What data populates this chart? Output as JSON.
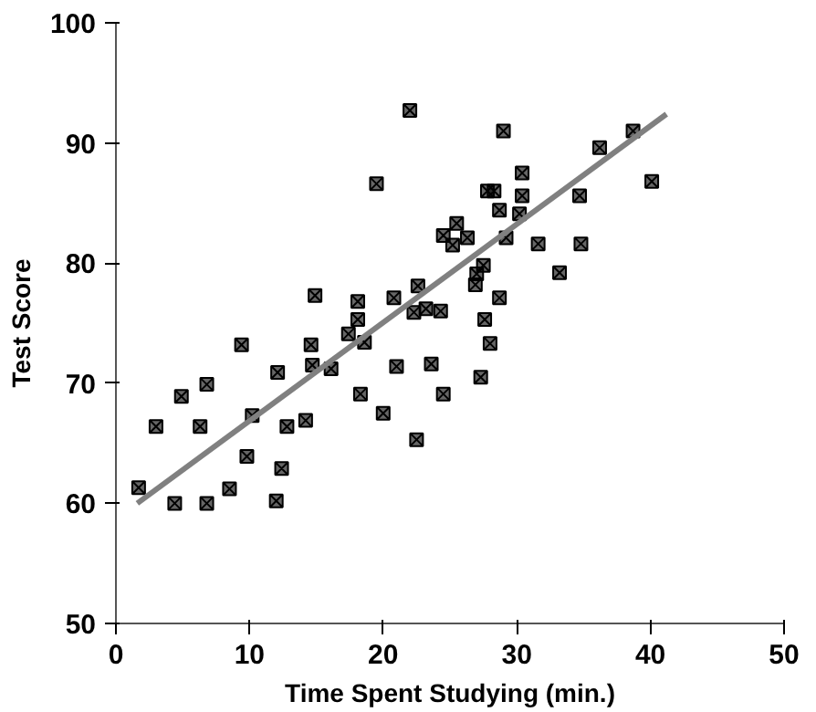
{
  "chart_data": {
    "type": "scatter",
    "xlabel": "Time Spent Studying (min.)",
    "ylabel": "Test Score",
    "xlim": [
      0,
      50
    ],
    "ylim": [
      50,
      100
    ],
    "xticks": [
      0,
      10,
      20,
      30,
      40,
      50
    ],
    "yticks": [
      50,
      60,
      70,
      80,
      90,
      100
    ],
    "grid": false,
    "marker": "cross",
    "series": [
      {
        "color": "#000000",
        "x": [
          1.7,
          3.0,
          4.9,
          4.4,
          6.3,
          6.8,
          6.8,
          8.5,
          9.4,
          9.8,
          10.2,
          12.0,
          12.1,
          12.4,
          12.8,
          14.2,
          14.6,
          14.9,
          14.7,
          16.1,
          17.4,
          18.1,
          18.1,
          18.6,
          18.3,
          20.0,
          20.8,
          21.0,
          22.3,
          22.6,
          22.5,
          23.2,
          23.6,
          24.3,
          24.5,
          22.0,
          29.0,
          30.4,
          27.8,
          28.3,
          30.4,
          28.7,
          30.2,
          25.5,
          24.5,
          26.3,
          25.2,
          29.2,
          31.6,
          34.8,
          34.7,
          36.2,
          38.7,
          40.1,
          33.2,
          27.5,
          27.0,
          26.9,
          28.7,
          27.6,
          28.0,
          19.5,
          27.3
        ],
        "values": [
          61.3,
          66.4,
          68.9,
          60,
          66.4,
          69.9,
          60,
          61.2,
          73.2,
          63.9,
          67.3,
          60.2,
          70.9,
          62.9,
          66.4,
          66.9,
          73.2,
          77.3,
          71.5,
          71.2,
          74.1,
          76.8,
          75.3,
          73.4,
          69.1,
          67.5,
          77.1,
          71.4,
          75.9,
          78.1,
          65.3,
          76.2,
          71.6,
          76.0,
          69.1,
          92.7,
          91.0,
          87.5,
          86.0,
          86.0,
          85.6,
          84.4,
          84.1,
          83.3,
          82.3,
          82.1,
          81.5,
          82.1,
          81.6,
          81.6,
          85.6,
          89.6,
          91.0,
          86.8,
          79.2,
          79.8,
          79.1,
          78.2,
          77.1,
          75.3,
          73.3,
          86.6,
          70.5
        ]
      },
      {
        "type": "line",
        "marker": "none",
        "color": "#808080",
        "x": [
          1.6,
          41.2
        ],
        "values": [
          60.0,
          92.4
        ]
      }
    ]
  }
}
